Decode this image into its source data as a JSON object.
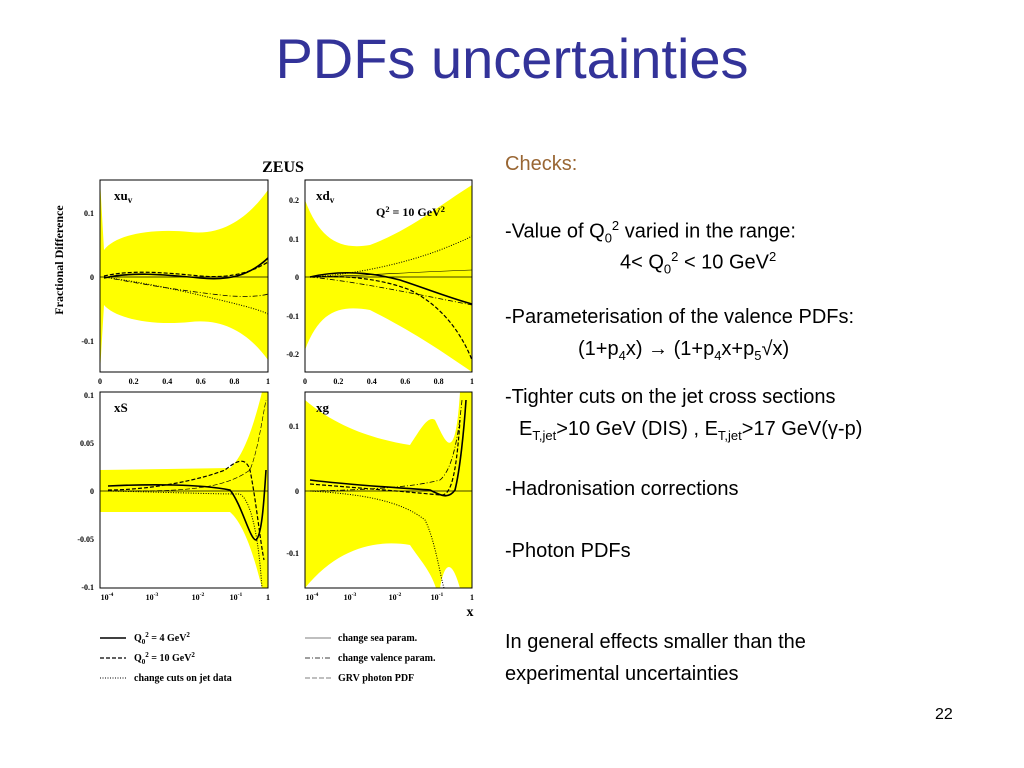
{
  "header": {
    "title": "PDFs uncertainties"
  },
  "figure": {
    "experiment": "ZEUS",
    "y_label": "Fractional Difference",
    "x_label": "x",
    "panels": [
      {
        "label": [
          "xu",
          "v"
        ],
        "yticks": [
          "0.1",
          "0",
          "-0.1"
        ],
        "xticks": [
          [
            "0"
          ],
          [
            "0.2"
          ],
          [
            "0.4"
          ],
          [
            "0.6"
          ],
          [
            "0.8"
          ],
          [
            "1"
          ]
        ]
      },
      {
        "label": [
          "xd",
          "v"
        ],
        "annotation": [
          "Q",
          "2",
          " = 10 GeV",
          "2"
        ],
        "yticks": [
          "0.2",
          "0.1",
          "0",
          "-0.1",
          "-0.2"
        ],
        "xticks": [
          [
            "0"
          ],
          [
            "0.2"
          ],
          [
            "0.4"
          ],
          [
            "0.6"
          ],
          [
            "0.8"
          ],
          [
            "1"
          ]
        ]
      },
      {
        "label": [
          "xS"
        ],
        "yticks": [
          "0.1",
          "0.05",
          "0",
          "-0.05",
          "-0.1"
        ],
        "xticks": [
          [
            "10",
            "-4"
          ],
          [
            "10",
            "-3"
          ],
          [
            "10",
            "-2"
          ],
          [
            "10",
            "-1"
          ],
          [
            "1"
          ]
        ]
      },
      {
        "label": [
          "xg"
        ],
        "yticks": [
          "0.1",
          "0",
          "-0.1"
        ],
        "xticks": [
          [
            "10",
            "-4"
          ],
          [
            "10",
            "-3"
          ],
          [
            "10",
            "-2"
          ],
          [
            "10",
            "-1"
          ],
          [
            "1"
          ]
        ]
      }
    ],
    "legend": [
      [
        "Q",
        "0",
        "2",
        " = 4 GeV",
        "2"
      ],
      [
        "Q",
        "0",
        "2",
        " = 10 GeV",
        "2"
      ],
      [
        "change cuts on jet data"
      ],
      [
        "change sea param."
      ],
      [
        "change valence param."
      ],
      [
        "GRV photon PDF"
      ]
    ]
  },
  "checks": {
    "heading": "Checks:",
    "lines": [
      [
        "-Value of Q",
        "0",
        "2",
        " varied in the range:"
      ],
      [
        "4< Q",
        "0",
        "2",
        " < 10 GeV",
        "2"
      ],
      [
        "-Parameterisation of the valence PDFs:"
      ],
      [
        "(1+p",
        "4",
        "x) → (1+p",
        "4",
        "x+p",
        "5",
        "√x)"
      ],
      [
        "-Tighter cuts on the jet cross sections"
      ],
      [
        "E",
        "T,jet",
        ">10 GeV (DIS) , E",
        "T,jet",
        ">17 GeV(γ-p)"
      ],
      [
        "-Hadronisation corrections"
      ],
      [
        "-Photon PDFs"
      ],
      [
        "In general effects smaller than the"
      ],
      [
        "experimental uncertainties"
      ]
    ]
  },
  "footer": {
    "page_number": "22"
  }
}
